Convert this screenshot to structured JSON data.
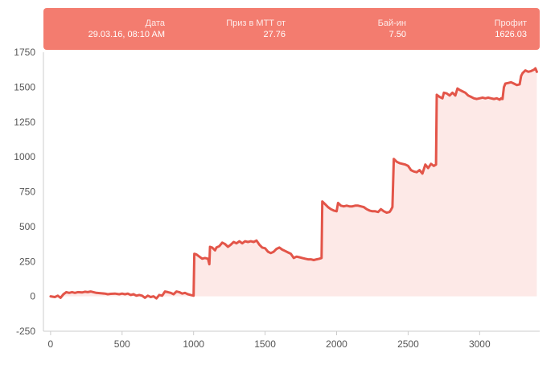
{
  "tooltip": {
    "columns": [
      {
        "label": "Дата",
        "value": "29.03.16, 08:10 AM"
      },
      {
        "label": "Приз в МТТ от",
        "value": "27.76"
      },
      {
        "label": "Бай-ин",
        "value": "7.50"
      },
      {
        "label": "Профит",
        "value": "1626.03"
      }
    ]
  },
  "colors": {
    "line": "#e35549",
    "area": "#fde9e7",
    "panel": "#f37c6f",
    "axis": "#cccccc",
    "tick_text": "#555555"
  },
  "chart_data": {
    "type": "area",
    "title": "",
    "xlabel": "",
    "ylabel": "",
    "xlim": [
      -50,
      3420
    ],
    "ylim": [
      -250,
      1750
    ],
    "x_ticks": [
      0,
      500,
      1000,
      1500,
      2000,
      2500,
      3000
    ],
    "y_ticks": [
      -250,
      0,
      250,
      500,
      750,
      1000,
      1250,
      1500,
      1750
    ],
    "grid": false,
    "legend": "none",
    "series": [
      {
        "points": [
          [
            0,
            0
          ],
          [
            30,
            -5
          ],
          [
            50,
            5
          ],
          [
            70,
            -10
          ],
          [
            90,
            15
          ],
          [
            110,
            30
          ],
          [
            130,
            25
          ],
          [
            150,
            30
          ],
          [
            170,
            25
          ],
          [
            190,
            30
          ],
          [
            220,
            28
          ],
          [
            240,
            33
          ],
          [
            260,
            30
          ],
          [
            280,
            35
          ],
          [
            300,
            30
          ],
          [
            320,
            25
          ],
          [
            350,
            22
          ],
          [
            380,
            20
          ],
          [
            400,
            15
          ],
          [
            420,
            18
          ],
          [
            450,
            20
          ],
          [
            480,
            15
          ],
          [
            500,
            20
          ],
          [
            520,
            15
          ],
          [
            540,
            20
          ],
          [
            560,
            10
          ],
          [
            580,
            15
          ],
          [
            600,
            5
          ],
          [
            620,
            10
          ],
          [
            640,
            5
          ],
          [
            660,
            -10
          ],
          [
            680,
            5
          ],
          [
            700,
            -5
          ],
          [
            720,
            0
          ],
          [
            740,
            -15
          ],
          [
            760,
            10
          ],
          [
            780,
            5
          ],
          [
            800,
            35
          ],
          [
            820,
            30
          ],
          [
            840,
            25
          ],
          [
            860,
            15
          ],
          [
            880,
            35
          ],
          [
            900,
            30
          ],
          [
            920,
            20
          ],
          [
            940,
            25
          ],
          [
            960,
            15
          ],
          [
            980,
            10
          ],
          [
            1000,
            5
          ],
          [
            1005,
            305
          ],
          [
            1020,
            300
          ],
          [
            1040,
            285
          ],
          [
            1060,
            270
          ],
          [
            1080,
            275
          ],
          [
            1100,
            270
          ],
          [
            1110,
            230
          ],
          [
            1115,
            355
          ],
          [
            1130,
            350
          ],
          [
            1150,
            330
          ],
          [
            1160,
            350
          ],
          [
            1180,
            360
          ],
          [
            1200,
            385
          ],
          [
            1220,
            375
          ],
          [
            1240,
            355
          ],
          [
            1260,
            370
          ],
          [
            1280,
            390
          ],
          [
            1300,
            380
          ],
          [
            1320,
            395
          ],
          [
            1340,
            380
          ],
          [
            1360,
            395
          ],
          [
            1380,
            390
          ],
          [
            1400,
            395
          ],
          [
            1420,
            390
          ],
          [
            1440,
            400
          ],
          [
            1460,
            370
          ],
          [
            1480,
            350
          ],
          [
            1500,
            345
          ],
          [
            1520,
            320
          ],
          [
            1540,
            310
          ],
          [
            1560,
            320
          ],
          [
            1580,
            340
          ],
          [
            1600,
            350
          ],
          [
            1620,
            335
          ],
          [
            1640,
            325
          ],
          [
            1660,
            315
          ],
          [
            1680,
            305
          ],
          [
            1700,
            275
          ],
          [
            1720,
            285
          ],
          [
            1740,
            280
          ],
          [
            1760,
            275
          ],
          [
            1780,
            270
          ],
          [
            1800,
            265
          ],
          [
            1820,
            265
          ],
          [
            1840,
            260
          ],
          [
            1860,
            265
          ],
          [
            1880,
            270
          ],
          [
            1895,
            275
          ],
          [
            1900,
            680
          ],
          [
            1920,
            660
          ],
          [
            1940,
            640
          ],
          [
            1960,
            625
          ],
          [
            1980,
            615
          ],
          [
            2000,
            610
          ],
          [
            2010,
            670
          ],
          [
            2030,
            650
          ],
          [
            2050,
            645
          ],
          [
            2070,
            650
          ],
          [
            2090,
            645
          ],
          [
            2110,
            645
          ],
          [
            2130,
            650
          ],
          [
            2150,
            650
          ],
          [
            2170,
            645
          ],
          [
            2190,
            640
          ],
          [
            2210,
            625
          ],
          [
            2230,
            615
          ],
          [
            2250,
            610
          ],
          [
            2270,
            610
          ],
          [
            2290,
            605
          ],
          [
            2310,
            625
          ],
          [
            2330,
            610
          ],
          [
            2350,
            600
          ],
          [
            2370,
            605
          ],
          [
            2380,
            620
          ],
          [
            2390,
            640
          ],
          [
            2400,
            985
          ],
          [
            2420,
            965
          ],
          [
            2440,
            955
          ],
          [
            2460,
            950
          ],
          [
            2480,
            945
          ],
          [
            2500,
            935
          ],
          [
            2520,
            905
          ],
          [
            2540,
            895
          ],
          [
            2560,
            890
          ],
          [
            2580,
            905
          ],
          [
            2600,
            880
          ],
          [
            2620,
            945
          ],
          [
            2640,
            920
          ],
          [
            2660,
            950
          ],
          [
            2680,
            935
          ],
          [
            2695,
            945
          ],
          [
            2700,
            1445
          ],
          [
            2720,
            1430
          ],
          [
            2740,
            1420
          ],
          [
            2750,
            1460
          ],
          [
            2770,
            1455
          ],
          [
            2790,
            1440
          ],
          [
            2810,
            1460
          ],
          [
            2830,
            1440
          ],
          [
            2845,
            1490
          ],
          [
            2860,
            1480
          ],
          [
            2880,
            1470
          ],
          [
            2900,
            1460
          ],
          [
            2920,
            1440
          ],
          [
            2940,
            1430
          ],
          [
            2960,
            1420
          ],
          [
            2980,
            1415
          ],
          [
            3000,
            1420
          ],
          [
            3020,
            1425
          ],
          [
            3040,
            1420
          ],
          [
            3060,
            1425
          ],
          [
            3080,
            1420
          ],
          [
            3100,
            1415
          ],
          [
            3120,
            1420
          ],
          [
            3140,
            1410
          ],
          [
            3150,
            1420
          ],
          [
            3160,
            1415
          ],
          [
            3170,
            1500
          ],
          [
            3180,
            1525
          ],
          [
            3200,
            1530
          ],
          [
            3220,
            1535
          ],
          [
            3240,
            1525
          ],
          [
            3260,
            1515
          ],
          [
            3280,
            1520
          ],
          [
            3290,
            1580
          ],
          [
            3300,
            1600
          ],
          [
            3320,
            1620
          ],
          [
            3340,
            1610
          ],
          [
            3360,
            1615
          ],
          [
            3380,
            1625
          ],
          [
            3390,
            1635
          ],
          [
            3400,
            1610
          ]
        ]
      }
    ]
  }
}
